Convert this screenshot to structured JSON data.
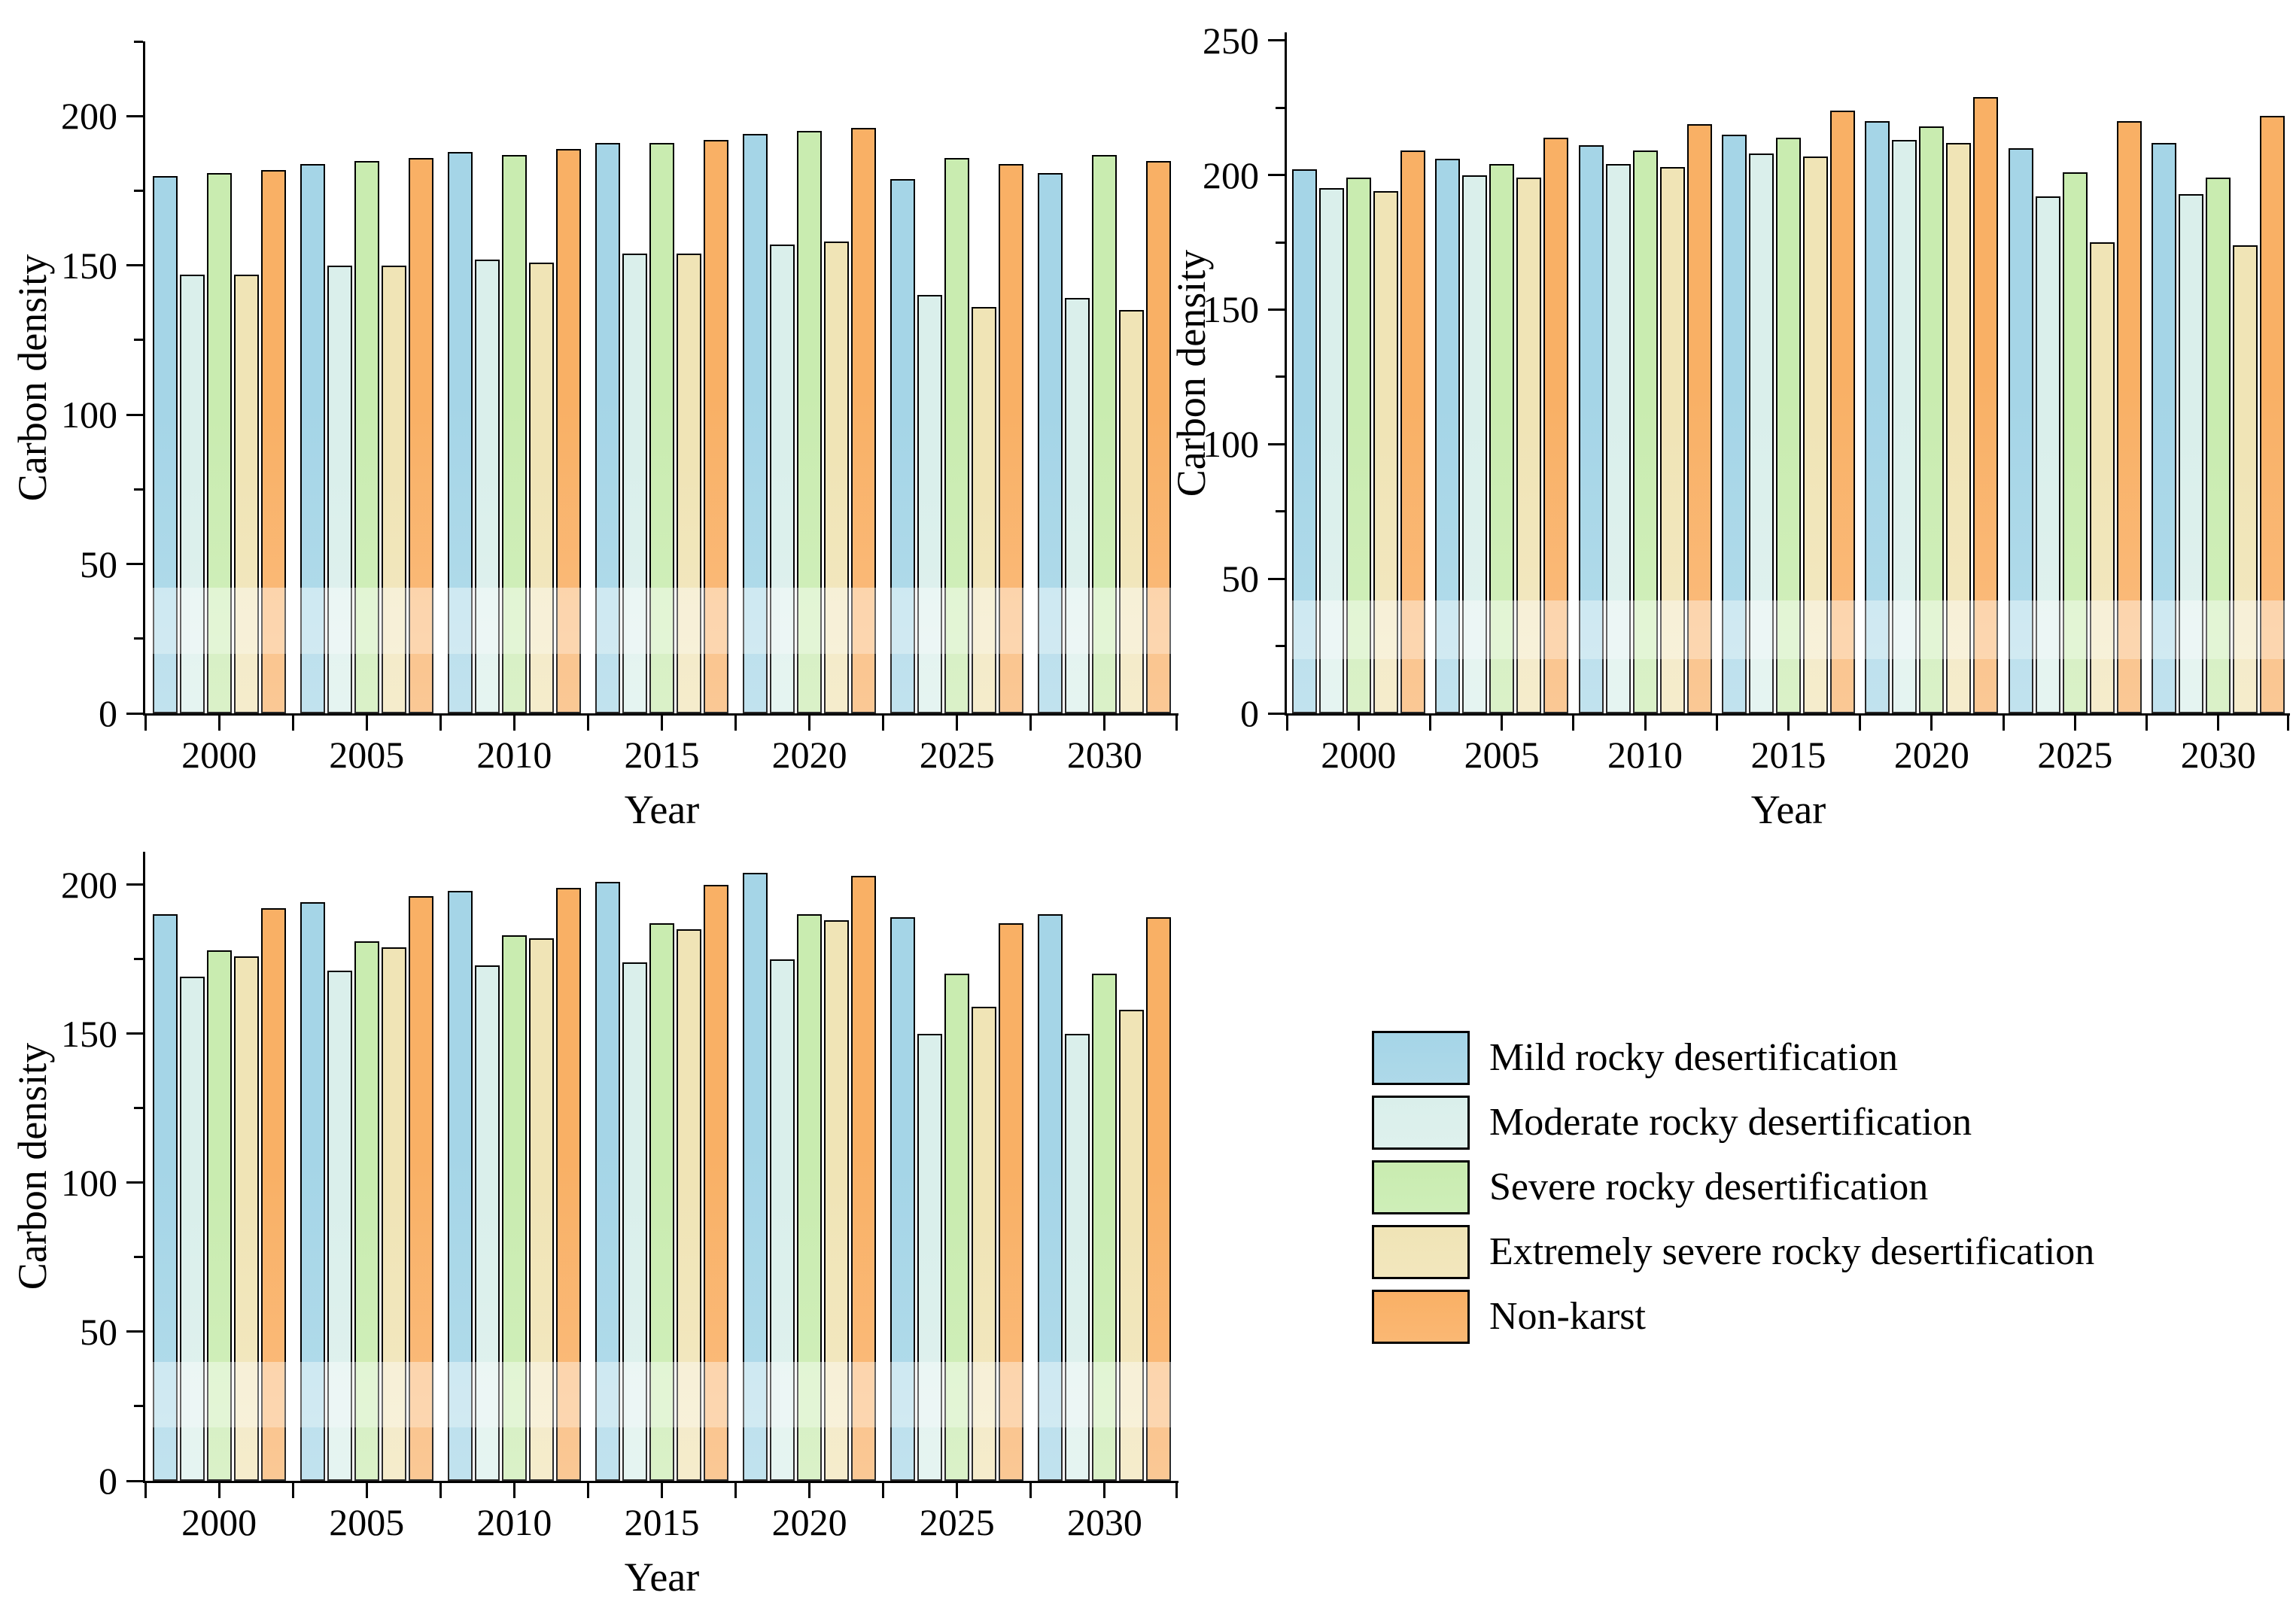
{
  "figure": {
    "background": "#FFFFFF",
    "y_axis_title": "Carbon density",
    "x_axis_title": "Year"
  },
  "legend": {
    "items": [
      {
        "key": "mild",
        "label": "Mild rocky desertification",
        "color": "#A5D5E7"
      },
      {
        "key": "moderate",
        "label": "Moderate rocky desertification",
        "color": "#DAEFEB"
      },
      {
        "key": "severe",
        "label": "Severe rocky desertification",
        "color": "#C9ECB0"
      },
      {
        "key": "extreme",
        "label": "Extremely severe rocky desertification",
        "color": "#F0E4B6"
      },
      {
        "key": "nonkarst",
        "label": "Non-karst",
        "color": "#F9B065"
      }
    ]
  },
  "chart_data": [
    {
      "id": "top-left",
      "type": "bar",
      "title": "",
      "xlabel": "Year",
      "ylabel": "Carbon density",
      "categories": [
        2000,
        2005,
        2010,
        2015,
        2020,
        2025,
        2030
      ],
      "y_ticks": [
        0,
        50,
        100,
        150,
        200
      ],
      "ylim": [
        0,
        225
      ],
      "grid": false,
      "series": [
        {
          "key": "mild",
          "name": "Mild rocky desertification",
          "color": "#A5D5E7",
          "values": [
            180,
            184,
            188,
            191,
            194,
            179,
            181
          ]
        },
        {
          "key": "moderate",
          "name": "Moderate rocky desertification",
          "color": "#DAEFEB",
          "values": [
            147,
            150,
            152,
            154,
            157,
            140,
            139
          ]
        },
        {
          "key": "severe",
          "name": "Severe rocky desertification",
          "color": "#C9ECB0",
          "values": [
            181,
            185,
            187,
            191,
            195,
            186,
            187
          ]
        },
        {
          "key": "extreme",
          "name": "Extremely severe rocky desertification",
          "color": "#F0E4B6",
          "values": [
            147,
            150,
            151,
            154,
            158,
            136,
            135
          ]
        },
        {
          "key": "nonkarst",
          "name": "Non-karst",
          "color": "#F9B065",
          "values": [
            182,
            186,
            189,
            192,
            196,
            184,
            185
          ]
        }
      ]
    },
    {
      "id": "top-right",
      "type": "bar",
      "title": "",
      "xlabel": "Year",
      "ylabel": "Carbon density",
      "categories": [
        2000,
        2005,
        2010,
        2015,
        2020,
        2025,
        2030
      ],
      "y_ticks": [
        0,
        50,
        100,
        150,
        200,
        250
      ],
      "ylim": [
        0,
        253
      ],
      "grid": false,
      "series": [
        {
          "key": "mild",
          "name": "Mild rocky desertification",
          "color": "#A5D5E7",
          "values": [
            202,
            206,
            211,
            215,
            220,
            210,
            212
          ]
        },
        {
          "key": "moderate",
          "name": "Moderate rocky desertification",
          "color": "#DAEFEB",
          "values": [
            195,
            200,
            204,
            208,
            213,
            192,
            193
          ]
        },
        {
          "key": "severe",
          "name": "Severe rocky desertification",
          "color": "#C9ECB0",
          "values": [
            199,
            204,
            209,
            214,
            218,
            201,
            199
          ]
        },
        {
          "key": "extreme",
          "name": "Extremely severe rocky desertification",
          "color": "#F0E4B6",
          "values": [
            194,
            199,
            203,
            207,
            212,
            175,
            174
          ]
        },
        {
          "key": "nonkarst",
          "name": "Non-karst",
          "color": "#F9B065",
          "values": [
            209,
            214,
            219,
            224,
            229,
            220,
            222
          ]
        }
      ]
    },
    {
      "id": "bottom-left",
      "type": "bar",
      "title": "",
      "xlabel": "Year",
      "ylabel": "Carbon density",
      "categories": [
        2000,
        2005,
        2010,
        2015,
        2020,
        2025,
        2030
      ],
      "y_ticks": [
        0,
        50,
        100,
        150,
        200
      ],
      "ylim": [
        0,
        211
      ],
      "grid": false,
      "series": [
        {
          "key": "mild",
          "name": "Mild rocky desertification",
          "color": "#A5D5E7",
          "values": [
            190,
            194,
            198,
            201,
            204,
            189,
            190
          ]
        },
        {
          "key": "moderate",
          "name": "Moderate rocky desertification",
          "color": "#DAEFEB",
          "values": [
            169,
            171,
            173,
            174,
            175,
            150,
            150
          ]
        },
        {
          "key": "severe",
          "name": "Severe rocky desertification",
          "color": "#C9ECB0",
          "values": [
            178,
            181,
            183,
            187,
            190,
            170,
            170
          ]
        },
        {
          "key": "extreme",
          "name": "Extremely severe rocky desertification",
          "color": "#F0E4B6",
          "values": [
            176,
            179,
            182,
            185,
            188,
            159,
            158
          ]
        },
        {
          "key": "nonkarst",
          "name": "Non-karst",
          "color": "#F9B065",
          "values": [
            192,
            196,
            199,
            200,
            203,
            187,
            189
          ]
        }
      ]
    }
  ]
}
